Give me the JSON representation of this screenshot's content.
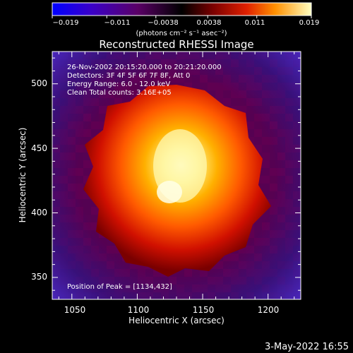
{
  "colorbar": {
    "ticks": [
      "−0.019",
      "−0.011",
      "−0.0038",
      "0.0038",
      "0.011",
      "0.019"
    ],
    "unit_label": "(photons cm⁻² s⁻¹ asec⁻²)",
    "range": [
      -0.019,
      0.019
    ],
    "colors": [
      "#0000ff",
      "#3a00c8",
      "#6a007a",
      "#000000",
      "#5a0000",
      "#b30000",
      "#ff3000",
      "#ff9000",
      "#ffe040",
      "#ffffd0"
    ]
  },
  "chart_data": {
    "type": "heatmap",
    "title": "Reconstructed RHESSI Image",
    "xlabel": "Heliocentric X (arcsec)",
    "ylabel": "Heliocentric Y (arcsec)",
    "xlim": [
      1035,
      1225
    ],
    "ylim": [
      333,
      525
    ],
    "xticks": [
      "1050",
      "1100",
      "1150",
      "1200"
    ],
    "yticks": [
      "350",
      "400",
      "450",
      "500"
    ],
    "annotations": [
      "26-Nov-2002 20:15:20.000 to 20:21:20.000",
      "Detectors: 3F 4F 5F 6F 7F 8F, Att 0",
      "Energy Range: 6.0 - 12.0 keV",
      "Clean     Total counts: 3.16E+05"
    ],
    "peak_text": "Position of Peak = [1134,432]",
    "peak": [
      1134,
      432
    ]
  },
  "footer": {
    "date": "3-May-2022 16:55"
  }
}
